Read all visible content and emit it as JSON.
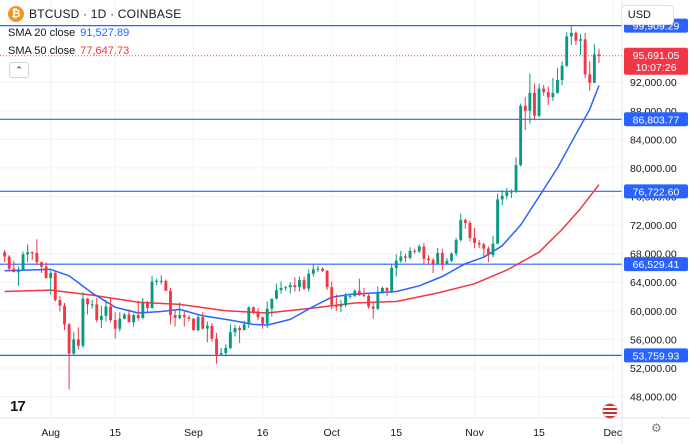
{
  "header": {
    "symbol_line": "BTCUSD · 1D · COINBASE",
    "logo_glyph": "₿",
    "sma20_label": "SMA 20 close",
    "sma20_value": "91,527.89",
    "sma50_label": "SMA 50 close",
    "sma50_value": "77,647.73",
    "collapse_glyph": "⌃",
    "currency": "USD"
  },
  "colors": {
    "up": "#089981",
    "down": "#f23645",
    "sma20": "#2962ff",
    "sma50": "#f23645",
    "hline": "#2962ff",
    "grid": "#f0f3fa",
    "axis_text": "#131722"
  },
  "chart_data": {
    "type": "candlestick",
    "y_axis": {
      "range": [
        45000,
        103500
      ],
      "ticks": [
        48000,
        52000,
        56000,
        60000,
        64000,
        68000,
        72000,
        76000,
        80000,
        84000,
        88000,
        92000
      ],
      "tick_labels": [
        "48,000.00",
        "52,000.00",
        "56,000.00",
        "60,000.00",
        "64,000.00",
        "68,000.00",
        "72,000.00",
        "76,000.00",
        "80,000.00",
        "84,000.00",
        "88,000.00",
        "92,000.00"
      ]
    },
    "x_axis": {
      "start": "2024-07-21",
      "end": "2024-12-03",
      "tick_labels": [
        {
          "date": "2024-08-01",
          "label": "Aug"
        },
        {
          "date": "2024-08-15",
          "label": "15"
        },
        {
          "date": "2024-09-01",
          "label": "Sep"
        },
        {
          "date": "2024-09-16",
          "label": "16"
        },
        {
          "date": "2024-10-01",
          "label": "Oct"
        },
        {
          "date": "2024-10-15",
          "label": "15"
        },
        {
          "date": "2024-11-01",
          "label": "Nov"
        },
        {
          "date": "2024-11-15",
          "label": "15"
        },
        {
          "date": "2024-12-01",
          "label": "Dec"
        }
      ]
    },
    "horizontal_levels": [
      {
        "value": 99909.29,
        "label": "99,909.29"
      },
      {
        "value": 86803.77,
        "label": "86,803.77"
      },
      {
        "value": 76722.6,
        "label": "76,722.60"
      },
      {
        "value": 66529.41,
        "label": "66,529.41"
      },
      {
        "value": 53759.93,
        "label": "53,759.93"
      }
    ],
    "current_price": {
      "value": 95691.05,
      "label": "95,691.05",
      "countdown": "10:07:26",
      "color": "#f23645"
    },
    "candles": [
      [
        "2024-07-22",
        68200,
        68500,
        66800,
        67600
      ],
      [
        "2024-07-23",
        67600,
        67800,
        65500,
        65900
      ],
      [
        "2024-07-24",
        65900,
        67000,
        65500,
        65400
      ],
      [
        "2024-07-25",
        65400,
        66200,
        63500,
        65800
      ],
      [
        "2024-07-26",
        65800,
        68300,
        65700,
        67900
      ],
      [
        "2024-07-27",
        67900,
        69300,
        66800,
        68200
      ],
      [
        "2024-07-28",
        68200,
        68300,
        67100,
        68100
      ],
      [
        "2024-07-29",
        68100,
        70000,
        66500,
        66800
      ],
      [
        "2024-07-30",
        66800,
        66900,
        65300,
        66200
      ],
      [
        "2024-07-31",
        66200,
        66800,
        64500,
        64600
      ],
      [
        "2024-08-01",
        64600,
        65600,
        62300,
        65300
      ],
      [
        "2024-08-02",
        65300,
        65500,
        61300,
        61500
      ],
      [
        "2024-08-03",
        61500,
        62100,
        59900,
        60700
      ],
      [
        "2024-08-04",
        60700,
        61100,
        57300,
        58100
      ],
      [
        "2024-08-05",
        58100,
        58300,
        49000,
        54000
      ],
      [
        "2024-08-06",
        54000,
        57000,
        53900,
        56000
      ],
      [
        "2024-08-07",
        56000,
        57700,
        54600,
        55100
      ],
      [
        "2024-08-08",
        55100,
        62600,
        54800,
        61700
      ],
      [
        "2024-08-09",
        61700,
        61800,
        59500,
        60900
      ],
      [
        "2024-08-10",
        60900,
        61500,
        60300,
        60900
      ],
      [
        "2024-08-11",
        60900,
        61800,
        58400,
        58700
      ],
      [
        "2024-08-12",
        58700,
        60700,
        57600,
        59300
      ],
      [
        "2024-08-13",
        59300,
        61500,
        58500,
        60600
      ],
      [
        "2024-08-14",
        60600,
        61800,
        58400,
        58700
      ],
      [
        "2024-08-15",
        58700,
        59800,
        56100,
        57500
      ],
      [
        "2024-08-16",
        57500,
        59800,
        57100,
        58900
      ],
      [
        "2024-08-17",
        58900,
        59700,
        58800,
        59500
      ],
      [
        "2024-08-18",
        59500,
        60200,
        58400,
        58400
      ],
      [
        "2024-08-19",
        58400,
        59600,
        57800,
        59400
      ],
      [
        "2024-08-20",
        59400,
        61400,
        58600,
        59000
      ],
      [
        "2024-08-21",
        59000,
        61800,
        58800,
        61100
      ],
      [
        "2024-08-22",
        61100,
        61400,
        59800,
        60400
      ],
      [
        "2024-08-23",
        60400,
        64900,
        60300,
        64100
      ],
      [
        "2024-08-24",
        64100,
        64500,
        63600,
        64200
      ],
      [
        "2024-08-25",
        64200,
        65000,
        63700,
        64200
      ],
      [
        "2024-08-26",
        64200,
        64400,
        62800,
        62800
      ],
      [
        "2024-08-27",
        62800,
        63200,
        58100,
        59400
      ],
      [
        "2024-08-28",
        59400,
        60200,
        57800,
        59000
      ],
      [
        "2024-08-29",
        59000,
        61200,
        58800,
        59400
      ],
      [
        "2024-08-30",
        59400,
        59900,
        57800,
        59100
      ],
      [
        "2024-08-31",
        59100,
        59400,
        58500,
        58900
      ],
      [
        "2024-09-01",
        58900,
        59000,
        57200,
        57300
      ],
      [
        "2024-09-02",
        57300,
        59400,
        57100,
        59100
      ],
      [
        "2024-09-03",
        59100,
        59800,
        57400,
        57500
      ],
      [
        "2024-09-04",
        57500,
        58500,
        55600,
        57900
      ],
      [
        "2024-09-05",
        57900,
        58300,
        55700,
        56100
      ],
      [
        "2024-09-06",
        56100,
        56900,
        52600,
        53900
      ],
      [
        "2024-09-07",
        53900,
        54800,
        53700,
        54100
      ],
      [
        "2024-09-08",
        54100,
        55300,
        53600,
        54800
      ],
      [
        "2024-09-09",
        54800,
        58100,
        54600,
        57000
      ],
      [
        "2024-09-10",
        57000,
        58000,
        56400,
        57600
      ],
      [
        "2024-09-11",
        57600,
        57900,
        55500,
        57300
      ],
      [
        "2024-09-12",
        57300,
        58600,
        57300,
        58100
      ],
      [
        "2024-09-13",
        58100,
        60600,
        57600,
        60500
      ],
      [
        "2024-09-14",
        60500,
        60600,
        59500,
        59900
      ],
      [
        "2024-09-15",
        59900,
        60400,
        58700,
        59100
      ],
      [
        "2024-09-16",
        59100,
        59200,
        57500,
        58200
      ],
      [
        "2024-09-17",
        58200,
        61300,
        57600,
        60300
      ],
      [
        "2024-09-18",
        60300,
        61700,
        59200,
        61700
      ],
      [
        "2024-09-19",
        61700,
        63800,
        61600,
        62900
      ],
      [
        "2024-09-20",
        62900,
        64100,
        62400,
        63200
      ],
      [
        "2024-09-21",
        63200,
        63500,
        62800,
        63300
      ],
      [
        "2024-09-22",
        63300,
        64000,
        62400,
        63600
      ],
      [
        "2024-09-23",
        63600,
        64700,
        62700,
        63300
      ],
      [
        "2024-09-24",
        63300,
        64800,
        62700,
        64300
      ],
      [
        "2024-09-25",
        64300,
        64800,
        62900,
        63100
      ],
      [
        "2024-09-26",
        63100,
        65800,
        62700,
        65200
      ],
      [
        "2024-09-27",
        65200,
        66500,
        64800,
        65800
      ],
      [
        "2024-09-28",
        65800,
        66300,
        65400,
        65900
      ],
      [
        "2024-09-29",
        65900,
        66100,
        65400,
        65600
      ],
      [
        "2024-09-30",
        65600,
        65700,
        62900,
        63300
      ],
      [
        "2024-10-01",
        63300,
        64100,
        60200,
        60800
      ],
      [
        "2024-10-02",
        60800,
        62300,
        60000,
        60600
      ],
      [
        "2024-10-03",
        60600,
        61500,
        59800,
        60800
      ],
      [
        "2024-10-04",
        60800,
        62500,
        60500,
        62100
      ],
      [
        "2024-10-05",
        62100,
        62400,
        61700,
        62100
      ],
      [
        "2024-10-06",
        62100,
        63000,
        61900,
        62800
      ],
      [
        "2024-10-07",
        62800,
        64500,
        62100,
        62200
      ],
      [
        "2024-10-08",
        62200,
        63200,
        61900,
        62100
      ],
      [
        "2024-10-09",
        62100,
        62500,
        60300,
        60600
      ],
      [
        "2024-10-10",
        60600,
        61300,
        58900,
        60300
      ],
      [
        "2024-10-11",
        60300,
        63400,
        60100,
        62500
      ],
      [
        "2024-10-12",
        62500,
        63400,
        62400,
        63200
      ],
      [
        "2024-10-13",
        63200,
        63300,
        62100,
        62800
      ],
      [
        "2024-10-14",
        62800,
        66500,
        62500,
        66000
      ],
      [
        "2024-10-15",
        66000,
        67900,
        64800,
        67000
      ],
      [
        "2024-10-16",
        67000,
        68400,
        66700,
        67600
      ],
      [
        "2024-10-17",
        67600,
        68000,
        66800,
        67400
      ],
      [
        "2024-10-18",
        67400,
        68900,
        67200,
        68400
      ],
      [
        "2024-10-19",
        68400,
        68700,
        68000,
        68300
      ],
      [
        "2024-10-20",
        68300,
        69300,
        68100,
        69000
      ],
      [
        "2024-10-21",
        69000,
        69500,
        66600,
        67300
      ],
      [
        "2024-10-22",
        67300,
        67800,
        66600,
        67100
      ],
      [
        "2024-10-23",
        67100,
        67400,
        65300,
        66600
      ],
      [
        "2024-10-24",
        66600,
        68800,
        66500,
        68100
      ],
      [
        "2024-10-25",
        68100,
        68700,
        65700,
        66600
      ],
      [
        "2024-10-26",
        66600,
        67400,
        66500,
        67000
      ],
      [
        "2024-10-27",
        67000,
        68200,
        66800,
        68000
      ],
      [
        "2024-10-28",
        68000,
        70200,
        67600,
        69900
      ],
      [
        "2024-10-29",
        69900,
        73600,
        69700,
        72700
      ],
      [
        "2024-10-30",
        72700,
        72900,
        71500,
        72300
      ],
      [
        "2024-10-31",
        72300,
        72600,
        69700,
        70200
      ],
      [
        "2024-11-01",
        70200,
        71600,
        68800,
        69500
      ],
      [
        "2024-11-02",
        69500,
        69900,
        68800,
        69300
      ],
      [
        "2024-11-03",
        69300,
        69500,
        67500,
        68700
      ],
      [
        "2024-11-04",
        68700,
        69000,
        66800,
        67800
      ],
      [
        "2024-11-05",
        67800,
        70500,
        67500,
        69400
      ],
      [
        "2024-11-06",
        69400,
        76400,
        69300,
        75600
      ],
      [
        "2024-11-07",
        75600,
        76900,
        74800,
        76100
      ],
      [
        "2024-11-08",
        76100,
        77200,
        75600,
        76600
      ],
      [
        "2024-11-09",
        76600,
        77000,
        75800,
        76700
      ],
      [
        "2024-11-10",
        76700,
        81500,
        76500,
        80400
      ],
      [
        "2024-11-11",
        80400,
        89000,
        80200,
        88700
      ],
      [
        "2024-11-12",
        88700,
        89900,
        85300,
        88000
      ],
      [
        "2024-11-13",
        88000,
        93200,
        86200,
        90500
      ],
      [
        "2024-11-14",
        90500,
        91800,
        86700,
        87300
      ],
      [
        "2024-11-15",
        87300,
        91800,
        87100,
        91100
      ],
      [
        "2024-11-16",
        91100,
        91600,
        90100,
        90600
      ],
      [
        "2024-11-17",
        90600,
        91400,
        88800,
        89900
      ],
      [
        "2024-11-18",
        89900,
        92600,
        89400,
        90500
      ],
      [
        "2024-11-19",
        90500,
        94000,
        90400,
        92300
      ],
      [
        "2024-11-20",
        92300,
        94900,
        91600,
        94300
      ],
      [
        "2024-11-21",
        94300,
        99000,
        94100,
        98400
      ],
      [
        "2024-11-22",
        98400,
        99800,
        97200,
        98900
      ],
      [
        "2024-11-23",
        98900,
        99100,
        97200,
        97800
      ],
      [
        "2024-11-24",
        97800,
        98700,
        95800,
        98000
      ],
      [
        "2024-11-25",
        98000,
        98900,
        92600,
        93100
      ],
      [
        "2024-11-26",
        93100,
        94900,
        90800,
        91900
      ],
      [
        "2024-11-27",
        91900,
        97300,
        91900,
        95900
      ],
      [
        "2024-11-28",
        95900,
        96700,
        94700,
        95691
      ]
    ],
    "sma20": [
      [
        "2024-07-22",
        65600
      ],
      [
        "2024-08-01",
        65800
      ],
      [
        "2024-08-05",
        64900
      ],
      [
        "2024-08-10",
        62500
      ],
      [
        "2024-08-15",
        60500
      ],
      [
        "2024-08-20",
        59700
      ],
      [
        "2024-08-25",
        59900
      ],
      [
        "2024-08-29",
        60200
      ],
      [
        "2024-09-03",
        59300
      ],
      [
        "2024-09-09",
        58700
      ],
      [
        "2024-09-14",
        58100
      ],
      [
        "2024-09-17",
        58000
      ],
      [
        "2024-09-22",
        58800
      ],
      [
        "2024-09-27",
        60600
      ],
      [
        "2024-10-01",
        61900
      ],
      [
        "2024-10-05",
        62300
      ],
      [
        "2024-10-10",
        62500
      ],
      [
        "2024-10-15",
        62700
      ],
      [
        "2024-10-20",
        63500
      ],
      [
        "2024-10-25",
        64800
      ],
      [
        "2024-10-30",
        66600
      ],
      [
        "2024-11-03",
        67500
      ],
      [
        "2024-11-07",
        69100
      ],
      [
        "2024-11-11",
        72000
      ],
      [
        "2024-11-15",
        76000
      ],
      [
        "2024-11-19",
        80000
      ],
      [
        "2024-11-23",
        84700
      ],
      [
        "2024-11-26",
        88200
      ],
      [
        "2024-11-28",
        91528
      ]
    ],
    "sma50": [
      [
        "2024-07-22",
        62700
      ],
      [
        "2024-08-01",
        62900
      ],
      [
        "2024-08-10",
        62200
      ],
      [
        "2024-08-20",
        61200
      ],
      [
        "2024-08-29",
        60900
      ],
      [
        "2024-09-08",
        60000
      ],
      [
        "2024-09-17",
        59700
      ],
      [
        "2024-09-27",
        60400
      ],
      [
        "2024-10-06",
        61100
      ],
      [
        "2024-10-15",
        61300
      ],
      [
        "2024-10-24",
        62500
      ],
      [
        "2024-11-01",
        63800
      ],
      [
        "2024-11-08",
        65700
      ],
      [
        "2024-11-15",
        68200
      ],
      [
        "2024-11-20",
        71400
      ],
      [
        "2024-11-24",
        74300
      ],
      [
        "2024-11-28",
        77648
      ]
    ]
  }
}
